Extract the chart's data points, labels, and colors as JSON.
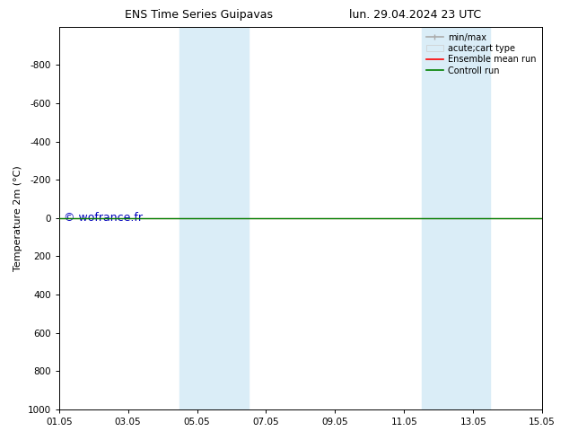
{
  "title_left": "ENS Time Series Guipavas",
  "title_right": "lun. 29.04.2024 23 UTC",
  "ylabel": "Temperature 2m (°C)",
  "xlabel": "",
  "xlim": [
    0,
    14
  ],
  "ylim_bottom": 1000,
  "ylim_top": -1000,
  "yticks": [
    -800,
    -600,
    -400,
    -200,
    0,
    200,
    400,
    600,
    800,
    1000
  ],
  "xtick_positions": [
    0,
    2,
    4,
    6,
    8,
    10,
    12,
    14
  ],
  "xtick_labels": [
    "01.05",
    "03.05",
    "05.05",
    "07.05",
    "09.05",
    "11.05",
    "13.05",
    "15.05"
  ],
  "shaded_regions": [
    {
      "xmin": 3.5,
      "xmax": 4.5
    },
    {
      "xmin": 4.5,
      "xmax": 5.5
    },
    {
      "xmin": 10.5,
      "xmax": 11.5
    },
    {
      "xmin": 11.5,
      "xmax": 12.5
    }
  ],
  "shade_color": "#daedf7",
  "control_run_color": "#008000",
  "ensemble_mean_color": "#ff0000",
  "watermark": "© wofrance.fr",
  "watermark_color": "#0000bb",
  "legend_labels": [
    "min/max",
    "acute;cart type",
    "Ensemble mean run",
    "Controll run"
  ],
  "legend_line_color": "#aaaaaa",
  "legend_box_color": "#daedf7",
  "legend_red": "#ff0000",
  "legend_green": "#008000",
  "bg_color": "#ffffff",
  "fig_width": 6.34,
  "fig_height": 4.9,
  "dpi": 100
}
